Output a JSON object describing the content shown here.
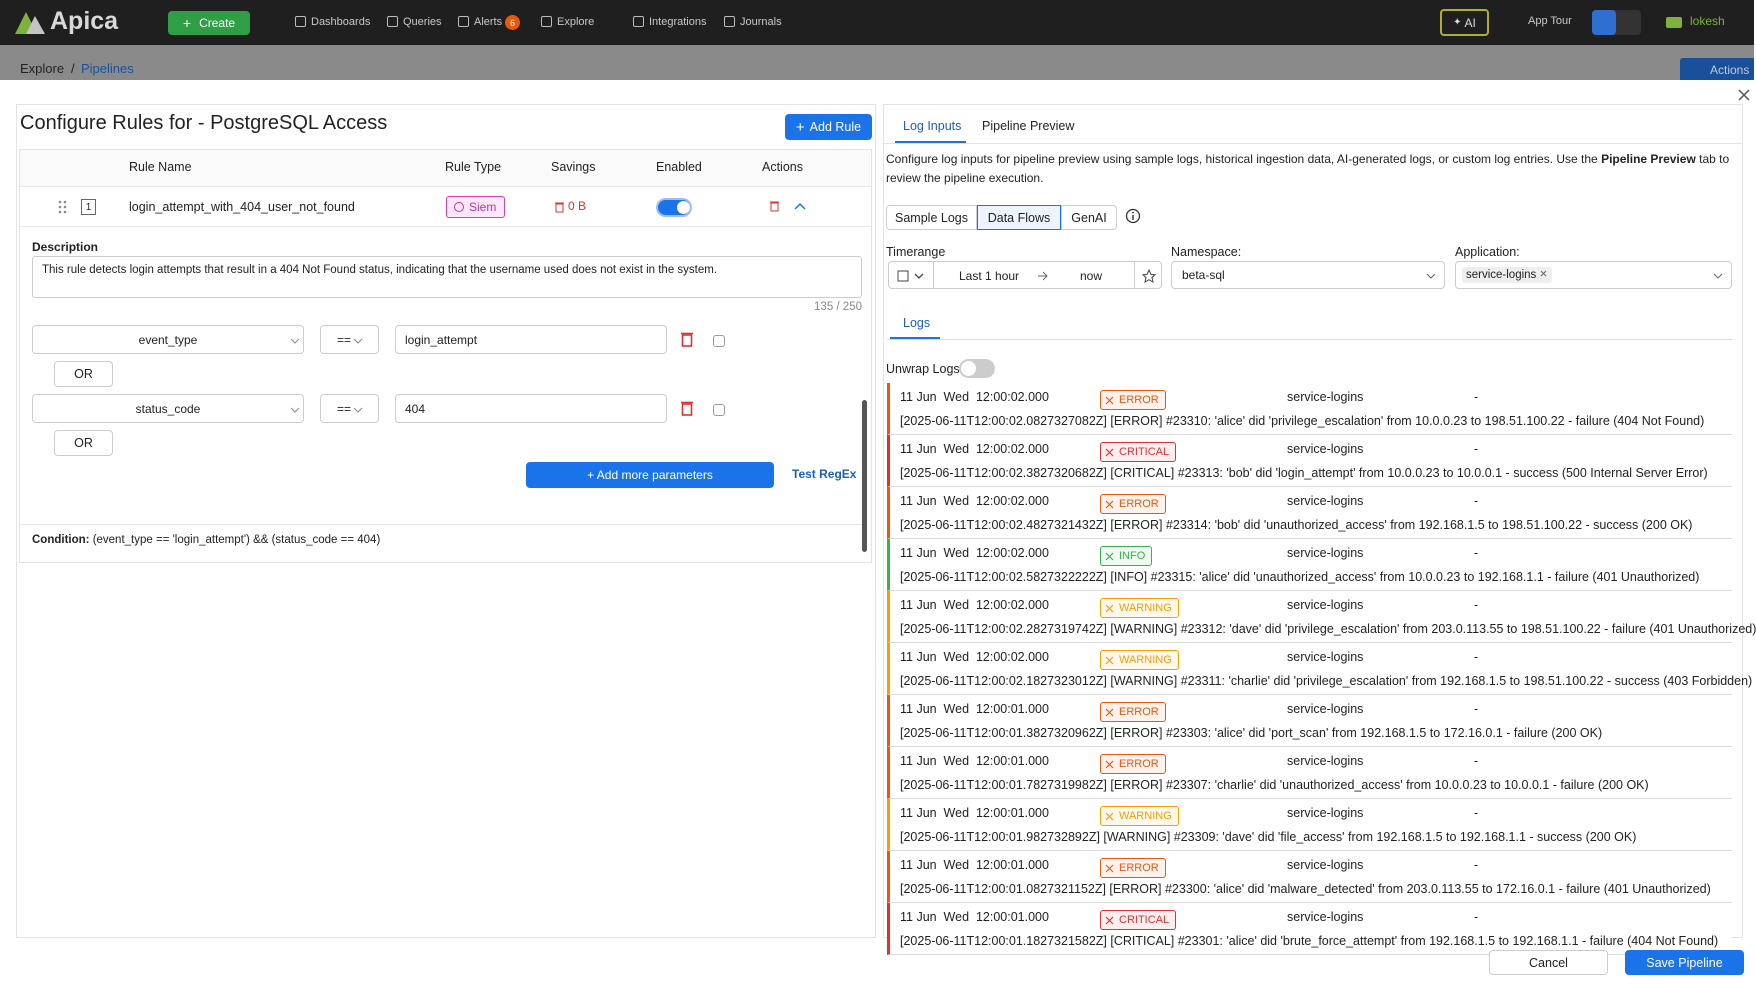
{
  "nav": {
    "logo": "Apica",
    "create": "Create",
    "items": [
      "Dashboards",
      "Queries",
      "Alerts",
      "Explore",
      "Integrations",
      "Journals"
    ],
    "alerts_badge": "6",
    "ai": "AI",
    "app_tour": "App Tour",
    "user": "lokesh"
  },
  "breadcrumb": {
    "root": "Explore",
    "separator": "/",
    "current": "Pipelines",
    "actions": "Actions"
  },
  "rules_panel": {
    "title": "Configure Rules for - PostgreSQL Access",
    "add_rule": "Add Rule",
    "headers": [
      "Rule Name",
      "Rule Type",
      "Savings",
      "Enabled",
      "Actions"
    ],
    "rule": {
      "index": "1",
      "name": "login_attempt_with_404_user_not_found",
      "type": "Siem",
      "savings": "0 B",
      "enabled": true
    },
    "description_label": "Description",
    "description": "This rule detects login attempts that result in a 404 Not Found status, indicating that the username used does not exist in the system.",
    "char_count": "135 / 250",
    "conditions": [
      {
        "field": "event_type",
        "operator": "==",
        "value": "login_attempt",
        "or": "OR"
      },
      {
        "field": "status_code",
        "operator": "==",
        "value": "404",
        "or": "OR"
      }
    ],
    "add_parameters": "+ Add more parameters",
    "test_regex": "Test RegEx",
    "condition_label": "Condition:",
    "condition": "(event_type == 'login_attempt') && (status_code == 404)"
  },
  "preview_panel": {
    "tabs": [
      "Log Inputs",
      "Pipeline Preview"
    ],
    "intro": [
      "Configure log inputs for pipeline preview using sample logs, historical ingestion data, AI-generated logs, or custom log entries. Use the ",
      "Pipeline Preview",
      " tab to review the pipeline execution."
    ],
    "sources": [
      "Sample Logs",
      "Data Flows",
      "GenAI"
    ],
    "selected_source": 1,
    "timerange_label": "Timerange",
    "timerange_from": "Last 1 hour",
    "timerange_to": "now",
    "namespace_label": "Namespace:",
    "namespace": "beta-sql",
    "application_label": "Application:",
    "application": "service-logins",
    "logs_tab": "Logs",
    "unwrap_label": "Unwrap Logs:",
    "logs": [
      {
        "time": "11 Jun  Wed  12:00:02.000",
        "level": "ERROR",
        "color": "#e8590c",
        "service": "service-logins",
        "host": "-",
        "message": "[2025-06-11T12:00:02.0827327082Z] [ERROR] #23310: 'alice' did 'privilege_escalation' from 10.0.0.23 to 198.51.100.22 - failure (404 Not Found)"
      },
      {
        "time": "11 Jun  Wed  12:00:02.000",
        "level": "CRITICAL",
        "color": "#e03131",
        "service": "service-logins",
        "host": "-",
        "message": "[2025-06-11T12:00:02.3827320682Z] [CRITICAL] #23313: 'bob' did 'login_attempt' from 10.0.0.23 to 10.0.0.1 - success (500 Internal Server Error)"
      },
      {
        "time": "11 Jun  Wed  12:00:02.000",
        "level": "ERROR",
        "color": "#e8590c",
        "service": "service-logins",
        "host": "-",
        "message": "[2025-06-11T12:00:02.4827321432Z] [ERROR] #23314: 'bob' did 'unauthorized_access' from 192.168.1.5 to 198.51.100.22 - success (200 OK)"
      },
      {
        "time": "11 Jun  Wed  12:00:02.000",
        "level": "INFO",
        "color": "#37b24d",
        "service": "service-logins",
        "host": "-",
        "message": "[2025-06-11T12:00:02.5827322222Z] [INFO] #23315: 'alice' did 'unauthorized_access' from 10.0.0.23 to 192.168.1.1 - failure (401 Unauthorized)"
      },
      {
        "time": "11 Jun  Wed  12:00:02.000",
        "level": "WARNING",
        "color": "#f59f00",
        "service": "service-logins",
        "host": "-",
        "message": "[2025-06-11T12:00:02.2827319742Z] [WARNING] #23312: 'dave' did 'privilege_escalation' from 203.0.113.55 to 198.51.100.22 - failure (401 Unauthorized)"
      },
      {
        "time": "11 Jun  Wed  12:00:02.000",
        "level": "WARNING",
        "color": "#f59f00",
        "service": "service-logins",
        "host": "-",
        "message": "[2025-06-11T12:00:02.1827323012Z] [WARNING] #23311: 'charlie' did 'privilege_escalation' from 192.168.1.5 to 198.51.100.22 - success (403 Forbidden)"
      },
      {
        "time": "11 Jun  Wed  12:00:01.000",
        "level": "ERROR",
        "color": "#e8590c",
        "service": "service-logins",
        "host": "-",
        "message": "[2025-06-11T12:00:01.3827320962Z] [ERROR] #23303: 'alice' did 'port_scan' from 192.168.1.5 to 172.16.0.1 - failure (200 OK)"
      },
      {
        "time": "11 Jun  Wed  12:00:01.000",
        "level": "ERROR",
        "color": "#e8590c",
        "service": "service-logins",
        "host": "-",
        "message": "[2025-06-11T12:00:01.7827319982Z] [ERROR] #23307: 'charlie' did 'unauthorized_access' from 10.0.0.23 to 10.0.0.1 - failure (200 OK)"
      },
      {
        "time": "11 Jun  Wed  12:00:01.000",
        "level": "WARNING",
        "color": "#f59f00",
        "service": "service-logins",
        "host": "-",
        "message": "[2025-06-11T12:00:01.982732892Z] [WARNING] #23309: 'dave' did 'file_access' from 192.168.1.5 to 192.168.1.1 - success (200 OK)"
      },
      {
        "time": "11 Jun  Wed  12:00:01.000",
        "level": "ERROR",
        "color": "#e8590c",
        "service": "service-logins",
        "host": "-",
        "message": "[2025-06-11T12:00:01.0827321152Z] [ERROR] #23300: 'alice' did 'malware_detected' from 203.0.113.55 to 172.16.0.1 - failure (401 Unauthorized)"
      },
      {
        "time": "11 Jun  Wed  12:00:01.000",
        "level": "CRITICAL",
        "color": "#e03131",
        "service": "service-logins",
        "host": "-",
        "message": "[2025-06-11T12:00:01.1827321582Z] [CRITICAL] #23301: 'alice' did 'brute_force_attempt' from 192.168.1.5 to 192.168.1.1 - failure (404 Not Found)"
      }
    ]
  },
  "footer": {
    "cancel": "Cancel",
    "save": "Save Pipeline"
  }
}
